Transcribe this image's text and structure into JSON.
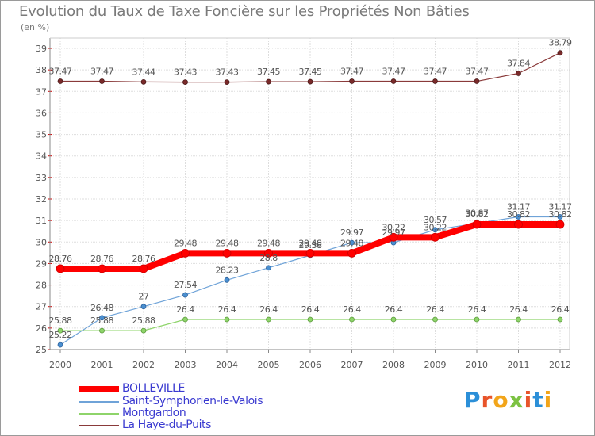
{
  "title": "Evolution du Taux de Taxe Foncière sur les Propriétés Non Bâties",
  "unit_label": "(en %)",
  "logo": {
    "text": "Proxiti",
    "colors": [
      "#2b8fd8",
      "#e8542a",
      "#f2a51a",
      "#7cc242",
      "#e8542a",
      "#2b8fd8",
      "#f2a51a"
    ]
  },
  "chart_data": {
    "type": "line",
    "title": "Evolution du Taux de Taxe Foncière sur les Propriétés Non Bâties",
    "ylabel": "(en %)",
    "xlabel": "",
    "ylim": [
      25,
      39
    ],
    "yticks": [
      25,
      26,
      27,
      28,
      29,
      30,
      31,
      32,
      33,
      34,
      35,
      36,
      37,
      38,
      39
    ],
    "x": [
      "2000",
      "2001",
      "2002",
      "2003",
      "2004",
      "2005",
      "2006",
      "2007",
      "2008",
      "2009",
      "2010",
      "2011",
      "2012"
    ],
    "grid": true,
    "legend_position": "bottom-left",
    "series": [
      {
        "name": "BOLLEVILLE",
        "color": "#ff0000",
        "values": [
          28.76,
          28.76,
          28.76,
          29.48,
          29.48,
          29.48,
          29.48,
          29.48,
          30.22,
          30.22,
          30.82,
          30.82,
          30.82
        ],
        "labels": [
          "28.76",
          "28.76",
          "28.76",
          "29.48",
          "29.48",
          "29.48",
          "29.48",
          "29.48",
          "30.22",
          "30.22",
          "30.82",
          "30.82",
          "30.82"
        ]
      },
      {
        "name": "Saint-Symphorien-le-Valois",
        "color": "#6fa3d8",
        "values": [
          25.22,
          26.48,
          27,
          27.54,
          28.23,
          28.8,
          29.38,
          29.97,
          29.97,
          30.57,
          30.87,
          31.17,
          31.17
        ],
        "labels": [
          "25.22",
          "26.48",
          "27",
          "27.54",
          "28.23",
          "28.8",
          "29.38",
          "29.97",
          "29.97",
          "30.57",
          "30.87",
          "31.17",
          "31.17"
        ]
      },
      {
        "name": "Montgardon",
        "color": "#8ed46a",
        "values": [
          25.88,
          25.88,
          25.88,
          26.4,
          26.4,
          26.4,
          26.4,
          26.4,
          26.4,
          26.4,
          26.4,
          26.4,
          26.4
        ],
        "labels": [
          "25.88",
          "25.88",
          "25.88",
          "26.4",
          "26.4",
          "26.4",
          "26.4",
          "26.4",
          "26.4",
          "26.4",
          "26.4",
          "26.4",
          "26.4"
        ]
      },
      {
        "name": "La Haye-du-Puits",
        "color": "#8a3a3a",
        "values": [
          37.47,
          37.47,
          37.44,
          37.43,
          37.43,
          37.45,
          37.45,
          37.47,
          37.47,
          37.47,
          37.47,
          37.84,
          38.79
        ],
        "labels": [
          "37.47",
          "37.47",
          "37.44",
          "37.43",
          "37.43",
          "37.45",
          "37.45",
          "37.47",
          "37.47",
          "37.47",
          "37.47",
          "37.84",
          "38.79"
        ]
      }
    ]
  }
}
